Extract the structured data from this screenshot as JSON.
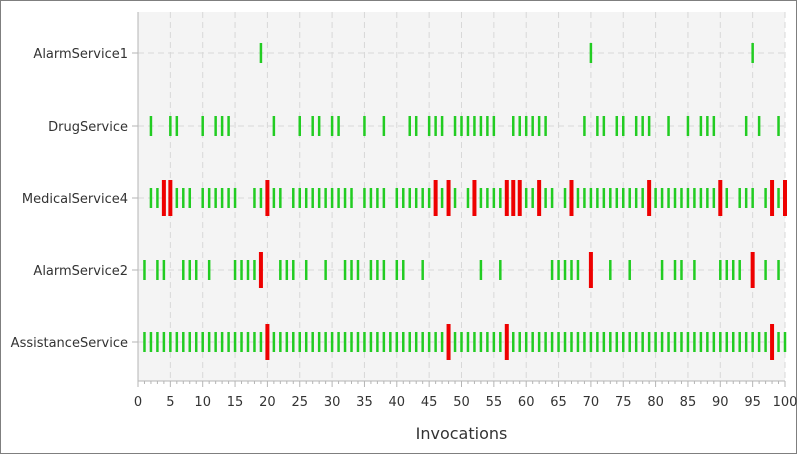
{
  "chart_data": {
    "type": "scatter",
    "xlabel": "Invocations",
    "ylabel": "",
    "title": "",
    "xlim": [
      0,
      100
    ],
    "x_tick_labels": [
      "0",
      "5",
      "10",
      "15",
      "20",
      "25",
      "30",
      "35",
      "40",
      "45",
      "50",
      "55",
      "60",
      "65",
      "70",
      "75",
      "80",
      "85",
      "90",
      "95",
      "100"
    ],
    "grid": true,
    "colors": {
      "ok": "#22cc22",
      "error": "#ee0000",
      "plot_bg": "#f4f4f4",
      "grid": "#d8d8d8"
    },
    "series": [
      {
        "name": "AlarmService1",
        "ok": [
          19,
          70,
          95
        ],
        "error": []
      },
      {
        "name": "DrugService",
        "ok": [
          2,
          5,
          6,
          10,
          12,
          13,
          14,
          21,
          25,
          27,
          28,
          30,
          31,
          35,
          38,
          42,
          43,
          45,
          46,
          47,
          49,
          50,
          51,
          52,
          53,
          54,
          55,
          58,
          59,
          60,
          61,
          62,
          63,
          69,
          71,
          72,
          74,
          75,
          77,
          78,
          79,
          82,
          85,
          87,
          88,
          89,
          94,
          96,
          99
        ],
        "error": []
      },
      {
        "name": "MedicalService4",
        "ok": [
          2,
          3,
          4,
          5,
          6,
          7,
          8,
          10,
          11,
          12,
          13,
          14,
          15,
          18,
          19,
          21,
          22,
          24,
          25,
          26,
          27,
          28,
          29,
          30,
          31,
          32,
          33,
          35,
          36,
          37,
          38,
          40,
          41,
          42,
          43,
          44,
          45,
          46,
          47,
          48,
          49,
          51,
          52,
          53,
          54,
          55,
          56,
          57,
          58,
          59,
          60,
          61,
          62,
          63,
          64,
          66,
          67,
          68,
          69,
          70,
          71,
          72,
          73,
          74,
          75,
          76,
          77,
          78,
          79,
          80,
          81,
          82,
          83,
          84,
          85,
          86,
          87,
          88,
          89,
          90,
          91,
          93,
          94,
          95,
          97,
          98,
          99,
          100
        ],
        "error": [
          4,
          5,
          20,
          46,
          48,
          52,
          57,
          58,
          59,
          62,
          67,
          79,
          90,
          98,
          100
        ]
      },
      {
        "name": "AlarmService2",
        "ok": [
          1,
          3,
          4,
          7,
          8,
          9,
          11,
          15,
          16,
          17,
          18,
          22,
          23,
          24,
          26,
          29,
          32,
          33,
          34,
          36,
          37,
          38,
          40,
          41,
          44,
          53,
          56,
          64,
          65,
          66,
          67,
          68,
          73,
          76,
          81,
          83,
          84,
          86,
          90,
          91,
          92,
          93,
          97,
          99
        ],
        "error": [
          19,
          70,
          95
        ]
      },
      {
        "name": "AssistanceService",
        "ok": [
          1,
          2,
          3,
          4,
          5,
          6,
          7,
          8,
          9,
          10,
          11,
          12,
          13,
          14,
          15,
          16,
          17,
          18,
          19,
          21,
          22,
          23,
          24,
          25,
          26,
          27,
          28,
          29,
          30,
          31,
          32,
          33,
          34,
          35,
          36,
          37,
          38,
          39,
          40,
          41,
          42,
          43,
          44,
          45,
          46,
          47,
          49,
          50,
          51,
          52,
          53,
          54,
          55,
          56,
          58,
          59,
          60,
          61,
          62,
          63,
          64,
          65,
          66,
          67,
          68,
          69,
          70,
          71,
          72,
          73,
          74,
          75,
          76,
          77,
          78,
          79,
          80,
          81,
          82,
          83,
          84,
          85,
          86,
          87,
          88,
          89,
          90,
          91,
          92,
          93,
          94,
          95,
          96,
          97,
          99,
          100
        ],
        "error": [
          20,
          48,
          57,
          98
        ]
      }
    ]
  }
}
